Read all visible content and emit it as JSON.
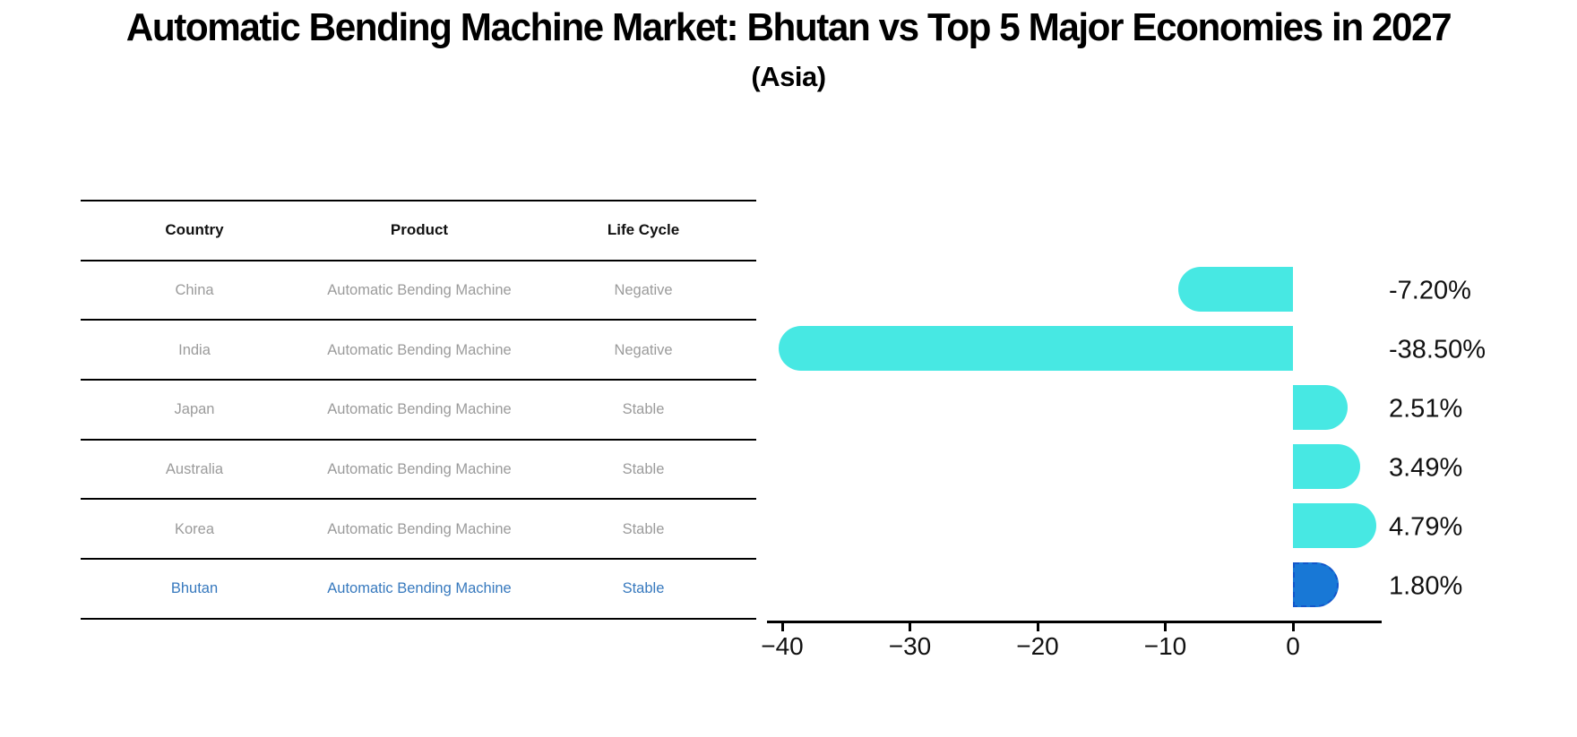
{
  "title": "Automatic Bending Machine Market: Bhutan vs Top 5 Major Economies in 2027",
  "subtitle": "(Asia)",
  "table": {
    "headers": [
      "Country",
      "Product",
      "Life Cycle"
    ],
    "rows": [
      {
        "country": "China",
        "product": "Automatic Bending Machine",
        "life_cycle": "Negative",
        "highlight": false
      },
      {
        "country": "India",
        "product": "Automatic Bending Machine",
        "life_cycle": "Negative",
        "highlight": false
      },
      {
        "country": "Japan",
        "product": "Automatic Bending Machine",
        "life_cycle": "Stable",
        "highlight": false
      },
      {
        "country": "Australia",
        "product": "Automatic Bending Machine",
        "life_cycle": "Stable",
        "highlight": false
      },
      {
        "country": "Korea",
        "product": "Automatic Bending Machine",
        "life_cycle": "Stable",
        "highlight": false
      },
      {
        "country": "Bhutan",
        "product": "Automatic Bending Machine",
        "life_cycle": "Stable",
        "highlight": true
      }
    ]
  },
  "chart_data": {
    "type": "bar",
    "orientation": "horizontal",
    "title": "Automatic Bending Machine Market: Bhutan vs Top 5 Major Economies in 2027 (Asia)",
    "categories": [
      "China",
      "India",
      "Japan",
      "Australia",
      "Korea",
      "Bhutan"
    ],
    "values": [
      -7.2,
      -38.5,
      2.51,
      3.49,
      4.79,
      1.8
    ],
    "value_labels": [
      "-7.20%",
      "-38.50%",
      "2.51%",
      "3.49%",
      "4.79%",
      "1.80%"
    ],
    "highlight_index": 5,
    "xlabel": "",
    "ylabel": "",
    "xlim": [
      -41.2,
      7.0
    ],
    "x_ticks": [
      -40,
      -30,
      -20,
      -10,
      0
    ],
    "x_tick_labels": [
      "−40",
      "−30",
      "−20",
      "−10",
      "0"
    ],
    "grid": false,
    "legend": "none"
  },
  "colors": {
    "bar_default": "#47e8e3",
    "bar_highlight": "#1878d6",
    "bar_highlight_edge": "#1356cb",
    "table_text": "#9b9b9b",
    "table_highlight_text": "#3779be",
    "axis_text": "#111111",
    "title_text": "#000000"
  }
}
